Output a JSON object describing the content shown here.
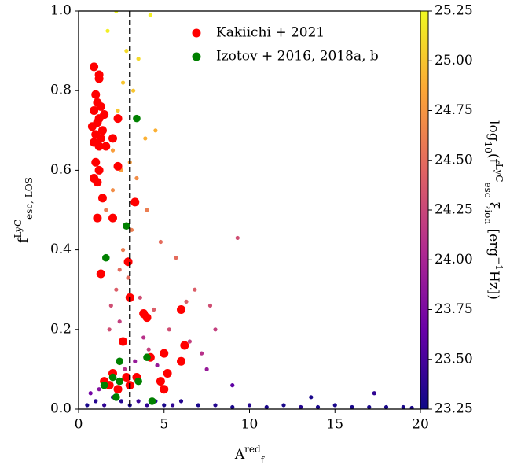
{
  "chart_data": {
    "type": "scatter",
    "x_label": [
      [
        "A",
        ""
      ],
      [
        "red",
        "sup"
      ],
      [
        "f",
        "sub"
      ]
    ],
    "y_label": [
      [
        "f",
        ""
      ],
      [
        "LyC",
        "sup"
      ],
      [
        "esc, LOS",
        "sub"
      ]
    ],
    "xlim": [
      0,
      20
    ],
    "ylim": [
      0,
      1.0
    ],
    "xticks": [
      0,
      5,
      10,
      15,
      20
    ],
    "yticks": [
      {
        "value": 0,
        "label": "0.0"
      },
      0.2,
      0.4,
      0.6,
      0.8,
      {
        "value": 1.0,
        "label": "1.0"
      }
    ],
    "vline": {
      "x": 3,
      "style": "dashed",
      "color": "#000000"
    },
    "legend": "upper center",
    "background": {
      "x": [
        0.5,
        1,
        1.5,
        2,
        2.5,
        3,
        3.5,
        4,
        4.5,
        5,
        5.5,
        6,
        7,
        8,
        9,
        10,
        11,
        12,
        13,
        14,
        15,
        16,
        17,
        18,
        19,
        19.5,
        1.2,
        2.1,
        2.7,
        3.3,
        4.1,
        1.8,
        2.4,
        3.8,
        4.6,
        0.7,
        2.2,
        2.9,
        3.6,
        4.4,
        5.3,
        6.5,
        7.2,
        1.9,
        2.6,
        3.1,
        2.0,
        2.5,
        3.4,
        4.0,
        4.8,
        5.7,
        6.8,
        7.5,
        9.3,
        8.0,
        1.5,
        2.3,
        3.2,
        3.9,
        2.8,
        1.7,
        2.2,
        4.2,
        3.5,
        2.6,
        2.0,
        3.0,
        4.5,
        1.6,
        2.4,
        6.3,
        7.7,
        17.3,
        13.6,
        9.0
      ],
      "y": [
        0.01,
        0.02,
        0.01,
        0.03,
        0.02,
        0.01,
        0.02,
        0.01,
        0.02,
        0.01,
        0.01,
        0.02,
        0.01,
        0.01,
        0.005,
        0.01,
        0.005,
        0.01,
        0.005,
        0.005,
        0.01,
        0.005,
        0.005,
        0.005,
        0.005,
        0.003,
        0.05,
        0.08,
        0.1,
        0.12,
        0.15,
        0.2,
        0.22,
        0.18,
        0.11,
        0.04,
        0.3,
        0.33,
        0.28,
        0.25,
        0.2,
        0.17,
        0.14,
        0.26,
        0.4,
        0.45,
        0.55,
        0.6,
        0.58,
        0.5,
        0.42,
        0.38,
        0.3,
        0.1,
        0.43,
        0.2,
        0.7,
        0.75,
        0.8,
        0.68,
        0.9,
        0.95,
        1.0,
        0.99,
        0.88,
        0.82,
        0.65,
        0.62,
        0.7,
        0.5,
        0.35,
        0.27,
        0.26,
        0.04,
        0.03,
        0.06
      ],
      "c": [
        23.3,
        23.35,
        23.4,
        23.5,
        23.35,
        23.3,
        23.45,
        23.4,
        23.35,
        23.3,
        23.4,
        23.35,
        23.3,
        23.35,
        23.3,
        23.35,
        23.3,
        23.3,
        23.35,
        23.3,
        23.3,
        23.3,
        23.3,
        23.3,
        23.3,
        23.3,
        23.8,
        24.0,
        24.1,
        23.9,
        24.2,
        24.3,
        24.2,
        24.1,
        23.9,
        23.7,
        24.4,
        24.5,
        24.3,
        24.4,
        24.3,
        24.2,
        24.1,
        24.3,
        24.6,
        24.6,
        24.7,
        24.8,
        24.7,
        24.6,
        24.5,
        24.5,
        24.4,
        23.9,
        24.3,
        24.2,
        24.9,
        25.0,
        25.0,
        24.9,
        25.1,
        25.2,
        25.25,
        25.2,
        25.1,
        25.0,
        24.8,
        24.8,
        24.9,
        24.6,
        24.5,
        24.4,
        24.3,
        23.4,
        23.3,
        23.6
      ]
    },
    "series": [
      {
        "name": "Kakiichi + 2021",
        "color": "#ff0000",
        "x": [
          0.9,
          1.2,
          1.2,
          1.0,
          1.1,
          1.3,
          0.9,
          1.5,
          1.2,
          2.3,
          1.1,
          0.8,
          1.4,
          1.0,
          1.3,
          2.0,
          0.9,
          1.2,
          1.6,
          1.0,
          1.2,
          0.9,
          1.1,
          2.3,
          1.4,
          3.3,
          1.1,
          2.0,
          2.9,
          1.3,
          3.0,
          3.8,
          4.0,
          6.0,
          6.2,
          6.0,
          5.0,
          5.2,
          4.8,
          5.0,
          1.5,
          2.0,
          2.3,
          1.8,
          2.8,
          3.0,
          3.4,
          2.6,
          4.2
        ],
        "y": [
          0.86,
          0.84,
          0.83,
          0.79,
          0.77,
          0.76,
          0.75,
          0.74,
          0.73,
          0.73,
          0.72,
          0.71,
          0.7,
          0.69,
          0.68,
          0.68,
          0.67,
          0.66,
          0.66,
          0.62,
          0.6,
          0.58,
          0.57,
          0.61,
          0.53,
          0.52,
          0.48,
          0.48,
          0.37,
          0.34,
          0.28,
          0.24,
          0.23,
          0.25,
          0.16,
          0.12,
          0.14,
          0.09,
          0.07,
          0.05,
          0.07,
          0.09,
          0.05,
          0.06,
          0.08,
          0.06,
          0.08,
          0.17,
          0.13
        ]
      },
      {
        "name": "Izotov + 2016, 2018a, b",
        "color": "#008000",
        "x": [
          3.4,
          2.8,
          1.6,
          2.4,
          4.0,
          2.0,
          3.5,
          1.5,
          2.2,
          4.3,
          2.4
        ],
        "y": [
          0.73,
          0.46,
          0.38,
          0.12,
          0.13,
          0.08,
          0.07,
          0.06,
          0.03,
          0.02,
          0.07
        ]
      }
    ],
    "colorbar": {
      "label": [
        [
          "log",
          ""
        ],
        [
          "10",
          "sub"
        ],
        [
          "(f",
          ""
        ],
        [
          "LyC",
          "sup"
        ],
        [
          "esc",
          "sub"
        ],
        [
          " ξ",
          ""
        ],
        [
          "ion",
          "sub"
        ],
        [
          " [erg",
          ""
        ],
        [
          "−1",
          "sup"
        ],
        [
          "Hz])",
          ""
        ]
      ],
      "lim": [
        23.25,
        25.25
      ],
      "ticks": [
        23.25,
        {
          "value": 23.5,
          "label": "23.50"
        },
        23.75,
        {
          "value": 24.0,
          "label": "24.00"
        },
        24.25,
        {
          "value": 24.5,
          "label": "24.50"
        },
        24.75,
        {
          "value": 25.0,
          "label": "25.00"
        },
        25.25
      ],
      "colormap": [
        "#0d0887",
        "#6a00a8",
        "#b12a90",
        "#e16462",
        "#fca636",
        "#f0f921"
      ]
    }
  }
}
